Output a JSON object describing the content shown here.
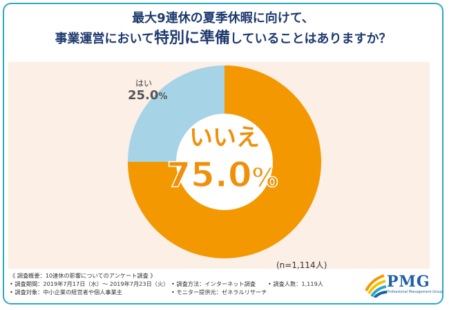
{
  "title": {
    "line1": "最大9連休の夏季休暇に向けて、",
    "line2_part1": "事業運営において",
    "line2_emph": "特別に準備",
    "line2_part2": "していることはありますか？"
  },
  "chart_data": {
    "type": "pie",
    "title": "最大9連休の夏季休暇に向けて、事業運営において特別に準備していることはありますか？",
    "categories": [
      "いいえ",
      "はい"
    ],
    "values": [
      75.0,
      25.0
    ],
    "colors": [
      "#f39800",
      "#a6d3e5"
    ],
    "labels": {
      "no_label": "いいえ",
      "no_value": "75.0",
      "yes_label": "はい",
      "yes_value": "25.0",
      "pct_sign": "%"
    },
    "n_note": "(n=1,114人)"
  },
  "footer": {
    "heading": "《 調査概要：10連休の影響についてのアンケート調査 》",
    "period": "• 調査期間：2019年7月17日（水）～ 2019年7月23日（火）",
    "method": "• 調査方法：インターネット調査",
    "count": "• 調査人数：1,119人",
    "target": "• 調査対象：中小企業の経営者や個人事業主",
    "provider": "• モニター提供元：ゼネラルリサーチ"
  },
  "logo": {
    "name": "PMG",
    "sub": "Professional Management Group"
  }
}
